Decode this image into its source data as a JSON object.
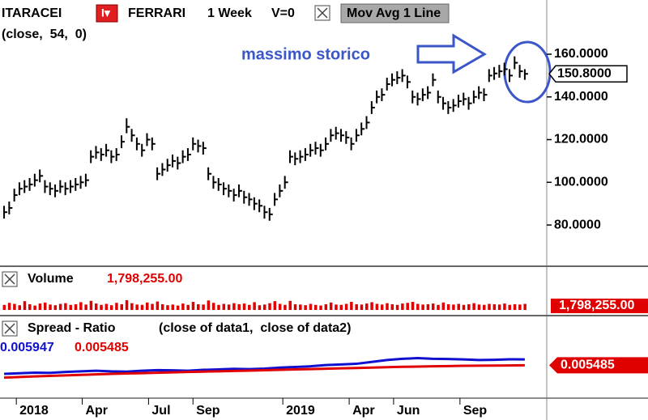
{
  "chart_data": [
    {
      "type": "ohlc",
      "symbol": "ITARACEI",
      "title": "FERRARI",
      "interval": "1 Week",
      "volume_flag": "V=0",
      "indicator": "Mov Avg 1 Line",
      "indicator_params": "(close,  54,  0)",
      "annotation": "massimo storico",
      "color": "#000000",
      "values": [
        86,
        88,
        94,
        97,
        98,
        99,
        101,
        103,
        98,
        97,
        96,
        98,
        97,
        98,
        99,
        100,
        101,
        112,
        114,
        113,
        115,
        112,
        113,
        119,
        126,
        122,
        118,
        115,
        120,
        118,
        104,
        106,
        108,
        110,
        109,
        112,
        113,
        118,
        117,
        116,
        104,
        100,
        99,
        97,
        96,
        94,
        96,
        93,
        92,
        90,
        89,
        86,
        85,
        92,
        96,
        100,
        112,
        111,
        112,
        113,
        115,
        116,
        115,
        118,
        122,
        123,
        122,
        121,
        118,
        122,
        125,
        128,
        135,
        140,
        141,
        146,
        148,
        149,
        150,
        147,
        140,
        139,
        141,
        142,
        148,
        140,
        137,
        135,
        136,
        138,
        139,
        137,
        140,
        142,
        141,
        150,
        151,
        152,
        153,
        150,
        156,
        152,
        150.8
      ],
      "value_labels": [
        null,
        null,
        null,
        null,
        null,
        null,
        null,
        null,
        null,
        null,
        null,
        null,
        null,
        null,
        null,
        null,
        null,
        null,
        null,
        null,
        null,
        null,
        null,
        null,
        null,
        null,
        null,
        null,
        null,
        null,
        null,
        null,
        null,
        null,
        null,
        null,
        null,
        null,
        null,
        null,
        null,
        null,
        null,
        null,
        null,
        null,
        null,
        null,
        null,
        null,
        null,
        null,
        null,
        null,
        null,
        null,
        null,
        null,
        null,
        null,
        null,
        null,
        null,
        null,
        null,
        null,
        null,
        null,
        null,
        null,
        null,
        null,
        null,
        null,
        null,
        null,
        null,
        null,
        null,
        null,
        null,
        null,
        null,
        null,
        null,
        null,
        null,
        null,
        null,
        null,
        null,
        null,
        null,
        null,
        null,
        null,
        null,
        null,
        null,
        null,
        null,
        null,
        "150.8000"
      ],
      "high": [
        89,
        91,
        97,
        100,
        101,
        102,
        104,
        106,
        101,
        100,
        99,
        101,
        100,
        101,
        102,
        103,
        104,
        115,
        117,
        116,
        118,
        115,
        116,
        122,
        130,
        125,
        121,
        118,
        123,
        121,
        107,
        109,
        111,
        113,
        112,
        115,
        116,
        121,
        120,
        119,
        107,
        103,
        102,
        100,
        99,
        97,
        99,
        96,
        95,
        93,
        92,
        89,
        88,
        95,
        99,
        103,
        115,
        114,
        115,
        116,
        118,
        119,
        118,
        121,
        125,
        126,
        125,
        124,
        121,
        125,
        128,
        131,
        138,
        143,
        144,
        149,
        151,
        152,
        153,
        150,
        143,
        142,
        144,
        145,
        151,
        143,
        140,
        138,
        139,
        141,
        142,
        140,
        143,
        145,
        144,
        153,
        154,
        155,
        156,
        153,
        159,
        155,
        153
      ],
      "low": [
        83,
        85,
        91,
        94,
        95,
        96,
        98,
        100,
        95,
        94,
        93,
        95,
        94,
        95,
        96,
        97,
        98,
        109,
        111,
        110,
        112,
        109,
        110,
        116,
        123,
        119,
        115,
        112,
        117,
        115,
        101,
        103,
        105,
        107,
        106,
        109,
        110,
        115,
        114,
        113,
        101,
        97,
        96,
        94,
        93,
        91,
        93,
        90,
        89,
        87,
        86,
        83,
        82,
        89,
        93,
        97,
        109,
        108,
        109,
        110,
        112,
        113,
        112,
        115,
        119,
        120,
        119,
        118,
        115,
        119,
        122,
        125,
        132,
        137,
        138,
        143,
        145,
        146,
        147,
        144,
        137,
        136,
        138,
        139,
        145,
        137,
        134,
        132,
        133,
        135,
        136,
        134,
        137,
        139,
        138,
        147,
        148,
        149,
        150,
        147,
        153,
        149,
        148
      ],
      "ylim": [
        62.2,
        185.4
      ],
      "yticks": [
        {
          "value": 80,
          "label": "80.0000"
        },
        {
          "value": 100,
          "label": "100.0000"
        },
        {
          "value": 120,
          "label": "120.0000"
        },
        {
          "value": 140,
          "label": "140.0000"
        },
        {
          "value": 160,
          "label": "160.0000"
        }
      ]
    },
    {
      "type": "volume-bar",
      "title": "Volume",
      "last_label": "1,798,255.00",
      "color": "#e00000",
      "values": [
        1500000,
        2100000,
        1800000,
        1400000,
        2600000,
        1700000,
        1300000,
        1900000,
        2200000,
        1600000,
        1400000,
        1800000,
        2000000,
        1500000,
        1700000,
        2300000,
        1600000,
        2700000,
        1900000,
        1500000,
        1800000,
        1400000,
        2100000,
        1700000,
        2900000,
        2000000,
        1600000,
        1500000,
        2200000,
        1800000,
        2500000,
        1700000,
        1400000,
        1600000,
        1300000,
        1900000,
        1500000,
        2400000,
        1700000,
        1600000,
        2800000,
        2100000,
        1500000,
        1800000,
        1600000,
        2000000,
        1700000,
        1900000,
        1500000,
        2300000,
        1400000,
        1600000,
        2000000,
        2600000,
        1800000,
        1500000,
        2700000,
        1700000,
        1600000,
        1400000,
        1800000,
        1500000,
        1300000,
        1700000,
        2200000,
        1600000,
        1500000,
        1800000,
        2400000,
        1700000,
        1600000,
        1900000,
        2300000,
        1800000,
        1600000,
        2000000,
        1700000,
        1500000,
        1900000,
        2100000,
        2400000,
        1800000,
        1600000,
        1700000,
        1900000,
        1500000,
        2200000,
        1700000,
        1600000,
        1800000,
        1500000,
        1700000,
        2000000,
        1600000,
        1500000,
        1800000,
        1700000,
        1600000,
        1900000,
        1500000,
        1700000,
        1600000,
        1798255
      ],
      "ylim": [
        0,
        6000000
      ]
    },
    {
      "type": "line",
      "title": "Spread - Ratio",
      "subtitle": "(close of data1,  close of data2)",
      "x": [
        0,
        3,
        6,
        9,
        12,
        15,
        18,
        21,
        24,
        27,
        30,
        33,
        36,
        39,
        42,
        45,
        48,
        51,
        54,
        57,
        60,
        63,
        66,
        69,
        72,
        75,
        78,
        81,
        84,
        87,
        90,
        93,
        96,
        99,
        102
      ],
      "series": [
        {
          "name": "0.005947",
          "color": "#1010d0",
          "values": [
            0.0048,
            0.00485,
            0.0049,
            0.00488,
            0.00495,
            0.005,
            0.00505,
            0.005,
            0.00498,
            0.00505,
            0.0051,
            0.00508,
            0.00505,
            0.00512,
            0.00515,
            0.0052,
            0.00518,
            0.00522,
            0.0053,
            0.00535,
            0.0054,
            0.0055,
            0.00555,
            0.0056,
            0.00575,
            0.0059,
            0.006,
            0.00605,
            0.006,
            0.00598,
            0.00595,
            0.0059,
            0.00592,
            0.00596,
            0.005947
          ]
        },
        {
          "name": "0.005485",
          "color": "#e00000",
          "values": [
            0.0045,
            0.00455,
            0.0046,
            0.00464,
            0.00468,
            0.00472,
            0.00476,
            0.0048,
            0.00483,
            0.00486,
            0.00489,
            0.00492,
            0.00495,
            0.00498,
            0.005,
            0.00503,
            0.00506,
            0.00509,
            0.00512,
            0.00515,
            0.00518,
            0.00521,
            0.00524,
            0.00527,
            0.0053,
            0.00533,
            0.00536,
            0.00538,
            0.0054,
            0.00542,
            0.00544,
            0.00545,
            0.00546,
            0.00547,
            0.005485
          ]
        }
      ],
      "last_label": "0.005485",
      "ylim": [
        0.003,
        0.0075
      ],
      "xlim": [
        -0.8,
        106.3
      ],
      "xticks": [
        {
          "value": 2.4,
          "label": "2018"
        },
        {
          "value": 15.3,
          "label": "Apr"
        },
        {
          "value": 28.3,
          "label": "Jul"
        },
        {
          "value": 37,
          "label": "Sep"
        },
        {
          "value": 54.6,
          "label": "2019"
        },
        {
          "value": 67.6,
          "label": "Apr"
        },
        {
          "value": 76.3,
          "label": "Jun"
        },
        {
          "value": 89.3,
          "label": "Sep"
        }
      ]
    }
  ]
}
